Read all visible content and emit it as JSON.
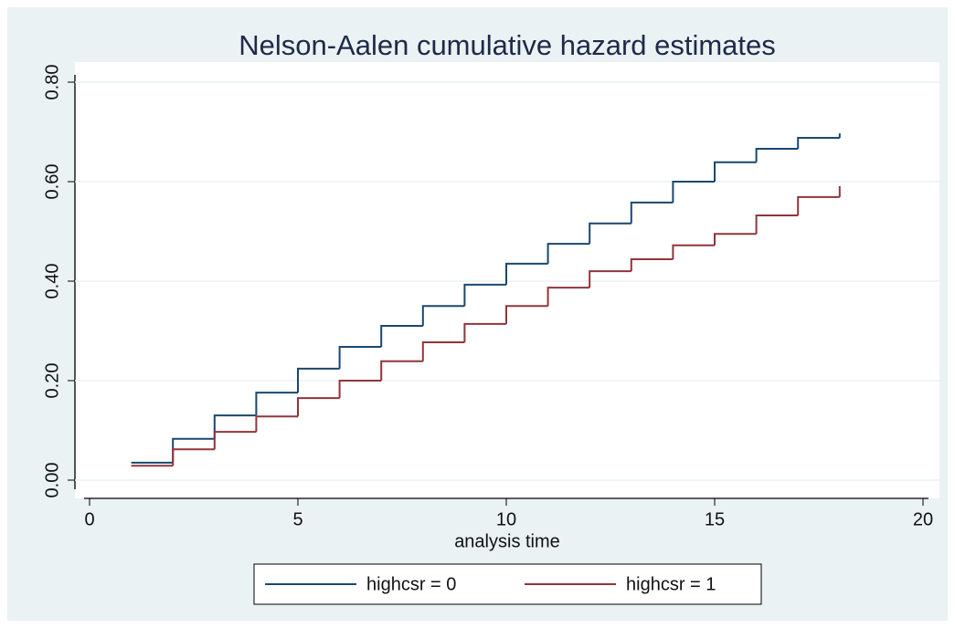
{
  "chart_data": {
    "type": "step",
    "title": "Nelson-Aalen cumulative hazard estimates",
    "x_label": "analysis time",
    "x": [
      1,
      2,
      3,
      4,
      5,
      6,
      7,
      8,
      9,
      10,
      11,
      12,
      13,
      14,
      15,
      16,
      17,
      18
    ],
    "series": [
      {
        "name": "highcsr = 0",
        "color": "#1a476f",
        "values": [
          0.035,
          0.083,
          0.13,
          0.176,
          0.224,
          0.268,
          0.31,
          0.35,
          0.393,
          0.435,
          0.475,
          0.516,
          0.558,
          0.6,
          0.639,
          0.666,
          0.688,
          0.697
        ]
      },
      {
        "name": "highcsr = 1",
        "color": "#90353b",
        "values": [
          0.029,
          0.062,
          0.097,
          0.128,
          0.165,
          0.2,
          0.239,
          0.277,
          0.314,
          0.35,
          0.387,
          0.42,
          0.444,
          0.472,
          0.495,
          0.532,
          0.569,
          0.591
        ]
      }
    ],
    "xlim": [
      0,
      20
    ],
    "xticks": [
      0,
      5,
      10,
      15,
      20
    ],
    "ylim": [
      0,
      0.8
    ],
    "yticks": [
      {
        "value": 0,
        "label": "0.00"
      },
      {
        "value": 0.2,
        "label": "0.20"
      },
      {
        "value": 0.4,
        "label": "0.40"
      },
      {
        "value": 0.6,
        "label": "0.60"
      },
      {
        "value": 0.8,
        "label": "0.80"
      }
    ],
    "grid": true,
    "legend": "bottom"
  }
}
